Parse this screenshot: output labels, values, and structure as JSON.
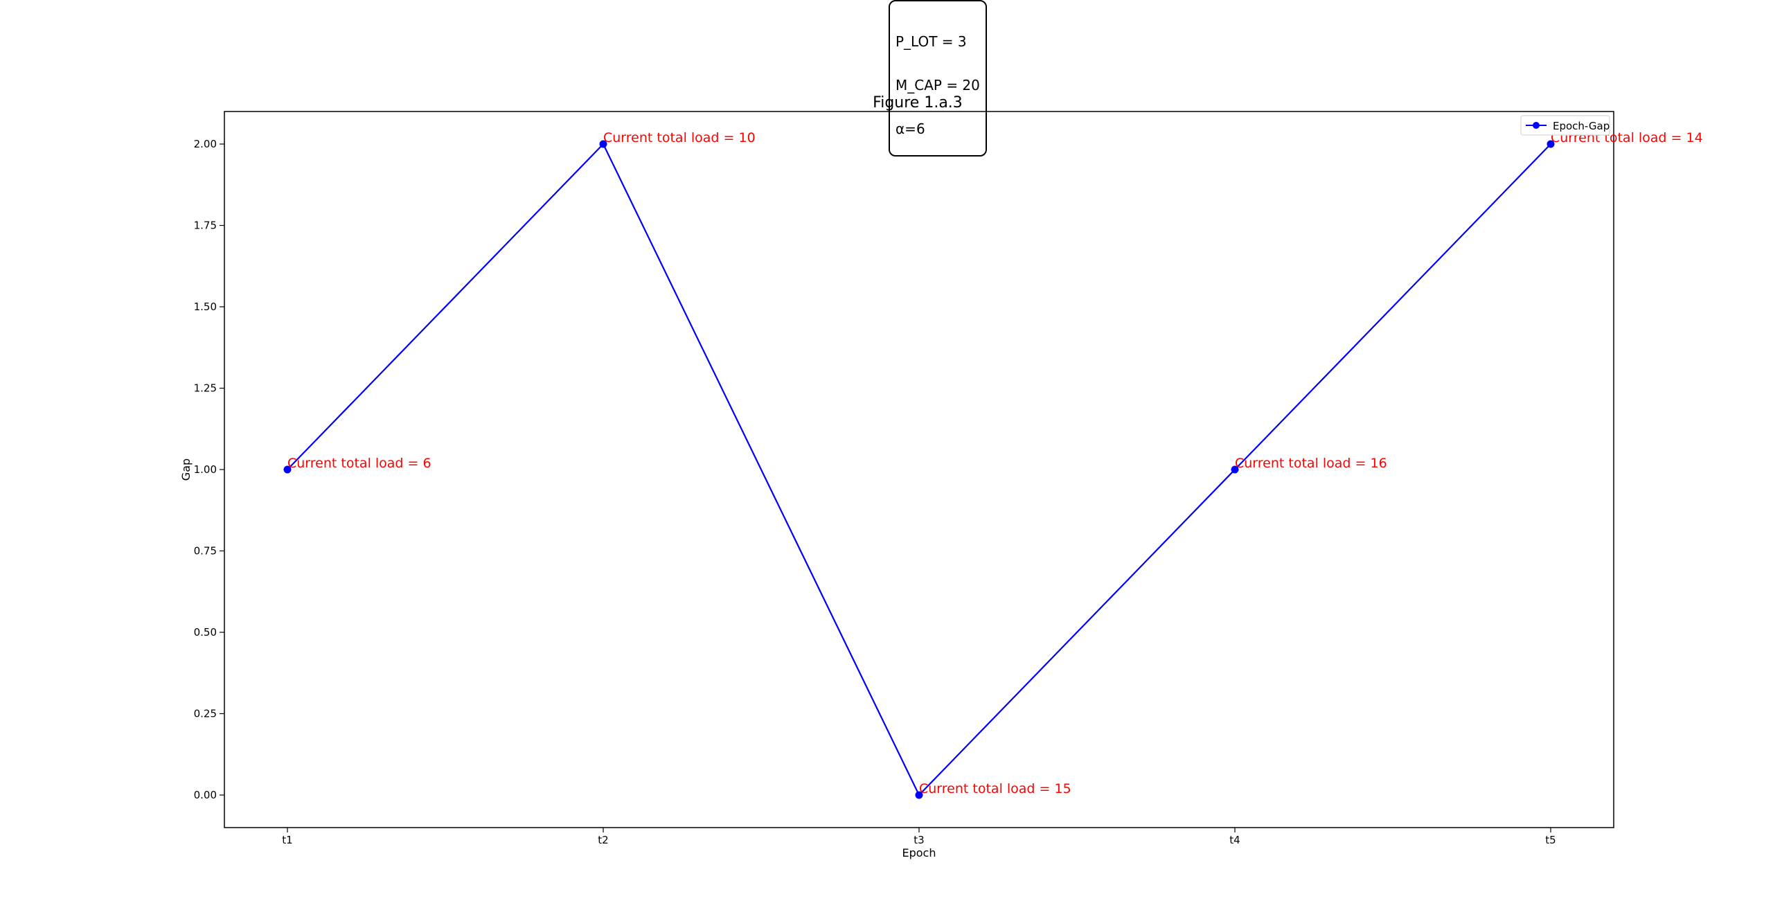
{
  "parameters": {
    "lines": [
      "P_LOT = 3",
      "M_CAP = 20",
      "α=6"
    ]
  },
  "chart_data": {
    "type": "line",
    "title": "Figure 1.a.3",
    "xlabel": "Epoch",
    "ylabel": "Gap",
    "categories": [
      "t1",
      "t2",
      "t3",
      "t4",
      "t5"
    ],
    "series": [
      {
        "name": "Epoch-Gap",
        "values": [
          1,
          2,
          0,
          1,
          2
        ],
        "color": "#0000ff",
        "marker": "circle"
      }
    ],
    "annotations": [
      {
        "category": "t1",
        "value": 1,
        "text": "Current total load = 6"
      },
      {
        "category": "t2",
        "value": 2,
        "text": "Current total load = 10"
      },
      {
        "category": "t3",
        "value": 0,
        "text": "Current total load = 15"
      },
      {
        "category": "t4",
        "value": 1,
        "text": "Current total load = 16"
      },
      {
        "category": "t5",
        "value": 2,
        "text": "Current total load = 14"
      }
    ],
    "annotation_color": "#ff0000",
    "ylim": [
      -0.1,
      2.1
    ],
    "yticks": [
      0.0,
      0.25,
      0.5,
      0.75,
      1.0,
      1.25,
      1.5,
      1.75,
      2.0
    ],
    "ytick_labels": [
      "0.00",
      "0.25",
      "0.50",
      "0.75",
      "1.00",
      "1.25",
      "1.50",
      "1.75",
      "2.00"
    ],
    "grid": false,
    "legend_position": "top-right"
  }
}
